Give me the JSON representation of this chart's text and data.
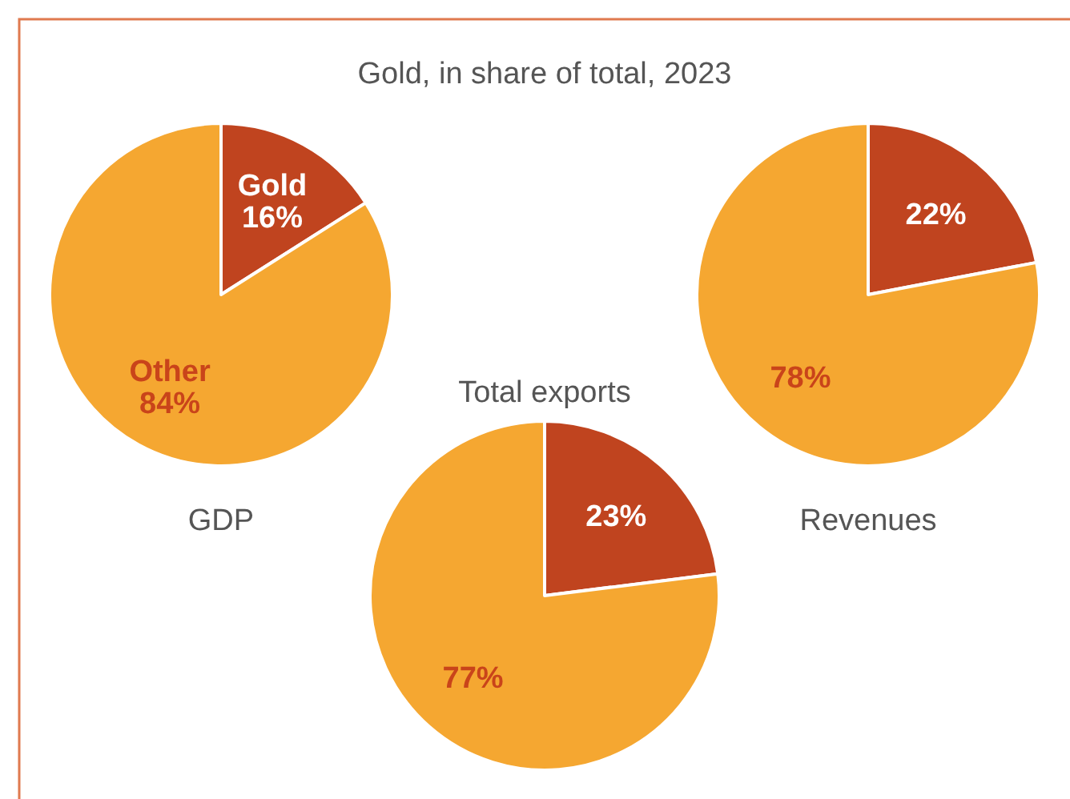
{
  "chart_data": [
    {
      "type": "other",
      "title": "Gold, in share of total, 2023"
    },
    {
      "type": "pie",
      "xlabel": "GDP",
      "categories": [
        "Gold",
        "Other"
      ],
      "values": [
        16,
        84
      ],
      "value_labels": [
        "16%",
        "84%"
      ],
      "colors": [
        "#c0441f",
        "#f5a731"
      ]
    },
    {
      "type": "pie",
      "xlabel": "Revenues",
      "categories": [
        null,
        null
      ],
      "values": [
        22,
        78
      ],
      "value_labels": [
        "22%",
        "78%"
      ],
      "colors": [
        "#c0441f",
        "#f5a731"
      ]
    },
    {
      "type": "pie",
      "title": "Total exports",
      "categories": [
        null,
        null
      ],
      "values": [
        23,
        77
      ],
      "value_labels": [
        "23%",
        "77%"
      ],
      "colors": [
        "#c0441f",
        "#f5a731"
      ]
    }
  ]
}
